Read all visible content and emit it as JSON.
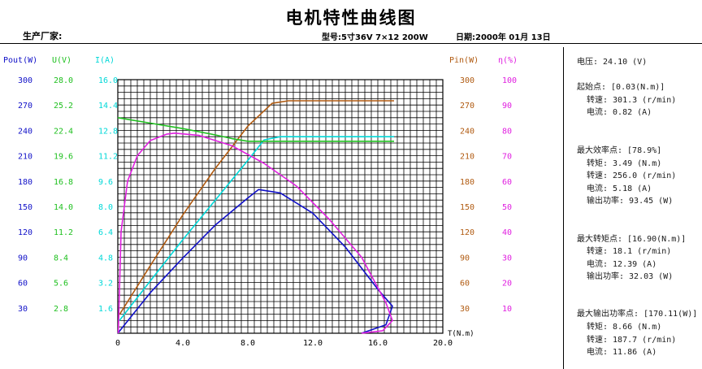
{
  "header": {
    "title": "电机特性曲线图",
    "manufacturer_label": "生产厂家:",
    "model": "型号:5寸36V 7×12 200W",
    "date": "日期:2000年 01月 13日"
  },
  "colors": {
    "pout": "#1010c8",
    "u": "#20c020",
    "i": "#00d8d8",
    "pin": "#b05a10",
    "eff": "#e020e0",
    "grid": "#000000"
  },
  "axes": {
    "pout": {
      "label": "Pout(W)",
      "ticks": [
        "30",
        "60",
        "90",
        "120",
        "150",
        "180",
        "210",
        "240",
        "270",
        "300"
      ]
    },
    "u": {
      "label": "U(V)",
      "ticks": [
        "2.8",
        "5.6",
        "8.4",
        "11.2",
        "14.0",
        "16.8",
        "19.6",
        "22.4",
        "25.2",
        "28.0"
      ]
    },
    "i": {
      "label": "I(A)",
      "ticks": [
        "1.6",
        "3.2",
        "4.8",
        "6.4",
        "8.0",
        "9.6",
        "11.2",
        "12.8",
        "14.4",
        "16.0"
      ]
    },
    "pin": {
      "label": "Pin(W)",
      "ticks": [
        "30",
        "60",
        "90",
        "120",
        "150",
        "180",
        "210",
        "240",
        "270",
        "300"
      ]
    },
    "eff": {
      "label": "η(%)",
      "ticks": [
        "10",
        "20",
        "30",
        "40",
        "50",
        "60",
        "70",
        "80",
        "90",
        "100"
      ]
    },
    "t": {
      "label": "T(N.m)",
      "ticks": [
        "0",
        "4.0",
        "8.0",
        "12.0",
        "16.0",
        "20.0"
      ]
    }
  },
  "chart_data": {
    "type": "line",
    "title": "电机特性曲线图",
    "xlabel": "T(N.m)",
    "xlim": [
      0,
      20
    ],
    "grid": true,
    "series": [
      {
        "key": "pin",
        "axis": "Pin(W)",
        "ylim": [
          0,
          300
        ],
        "x": [
          0.1,
          2,
          4,
          6,
          8,
          9.5,
          10.5,
          13,
          15,
          17
        ],
        "y": [
          22,
          80,
          140,
          195,
          245,
          272,
          275,
          275,
          275,
          275
        ]
      },
      {
        "key": "i",
        "axis": "I(A)",
        "ylim": [
          0,
          16
        ],
        "x": [
          0.1,
          2,
          4,
          6,
          8,
          9,
          10,
          12,
          14,
          17
        ],
        "y": [
          0.8,
          3.3,
          5.9,
          8.4,
          10.9,
          12.2,
          12.4,
          12.4,
          12.4,
          12.4
        ]
      },
      {
        "key": "u",
        "axis": "U(V)",
        "ylim": [
          0,
          28
        ],
        "x": [
          0,
          2,
          4,
          6,
          7,
          8,
          10,
          14,
          17
        ],
        "y": [
          23.8,
          23.2,
          22.6,
          21.9,
          21.5,
          21.2,
          21.2,
          21.2,
          21.2
        ]
      },
      {
        "key": "pout",
        "axis": "Pout(W)",
        "ylim": [
          0,
          300
        ],
        "x": [
          0,
          2,
          4,
          6,
          8,
          8.66,
          10,
          12,
          14,
          16,
          16.9,
          16.5,
          15
        ],
        "y": [
          0,
          48,
          89,
          128,
          160,
          170,
          166,
          142,
          102,
          52,
          32,
          10,
          0
        ]
      },
      {
        "key": "eff",
        "axis": "η(%)",
        "ylim": [
          0,
          100
        ],
        "x": [
          0.03,
          0.2,
          0.6,
          1.2,
          2,
          3,
          3.49,
          5,
          7,
          9,
          11,
          13,
          15,
          16.5,
          16.9,
          16.3,
          15
        ],
        "y": [
          0,
          40,
          60,
          70,
          76,
          78.5,
          78.9,
          78,
          74,
          67,
          58,
          45,
          30,
          12,
          5,
          1,
          0
        ]
      }
    ]
  },
  "side_panel": {
    "voltage": "电压:   24.10 (V)",
    "start_title": "起始点: [0.03(N.m)]",
    "start_lines": [
      "转速: 301.3 (r/min)",
      "电流: 0.82 (A)"
    ],
    "eff_title": "最大效率点: [78.9%]",
    "eff_lines": [
      "转矩: 3.49 (N.m)",
      "转速: 256.0 (r/min)",
      "电流: 5.18 (A)",
      "输出功率: 93.45 (W)"
    ],
    "torque_title": "最大转矩点: [16.90(N.m)]",
    "torque_lines": [
      "转速: 18.1 (r/min)",
      "电流: 12.39 (A)",
      "输出功率: 32.03 (W)"
    ],
    "power_title": "最大输出功率点: [170.11(W)]",
    "power_lines": [
      "转矩: 8.66 (N.m)",
      "转速: 187.7 (r/min)",
      "电流: 11.86 (A)"
    ]
  }
}
